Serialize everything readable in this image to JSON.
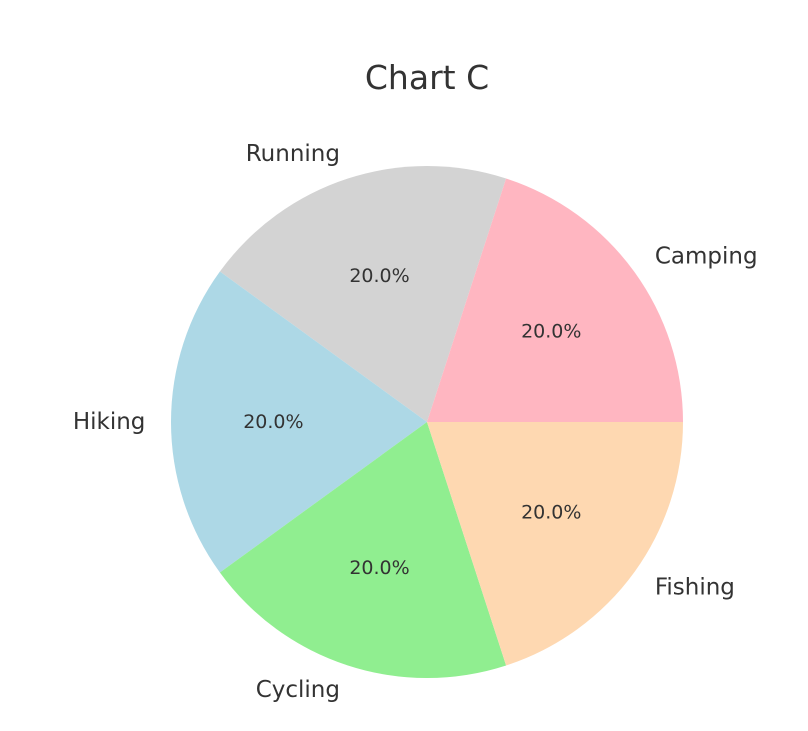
{
  "chart_data": {
    "type": "pie",
    "title": "Chart C",
    "categories": [
      "Running",
      "Hiking",
      "Cycling",
      "Fishing",
      "Camping"
    ],
    "values": [
      20.0,
      20.0,
      20.0,
      20.0,
      20.0
    ],
    "percent_labels": [
      "20.0%",
      "20.0%",
      "20.0%",
      "20.0%",
      "20.0%"
    ],
    "colors": [
      "#d3d3d3",
      "#add8e6",
      "#90ee90",
      "#fed8b1",
      "#ffb6c1"
    ],
    "start_angle_deg": 72,
    "direction": "counterclockwise",
    "legend": "none"
  }
}
